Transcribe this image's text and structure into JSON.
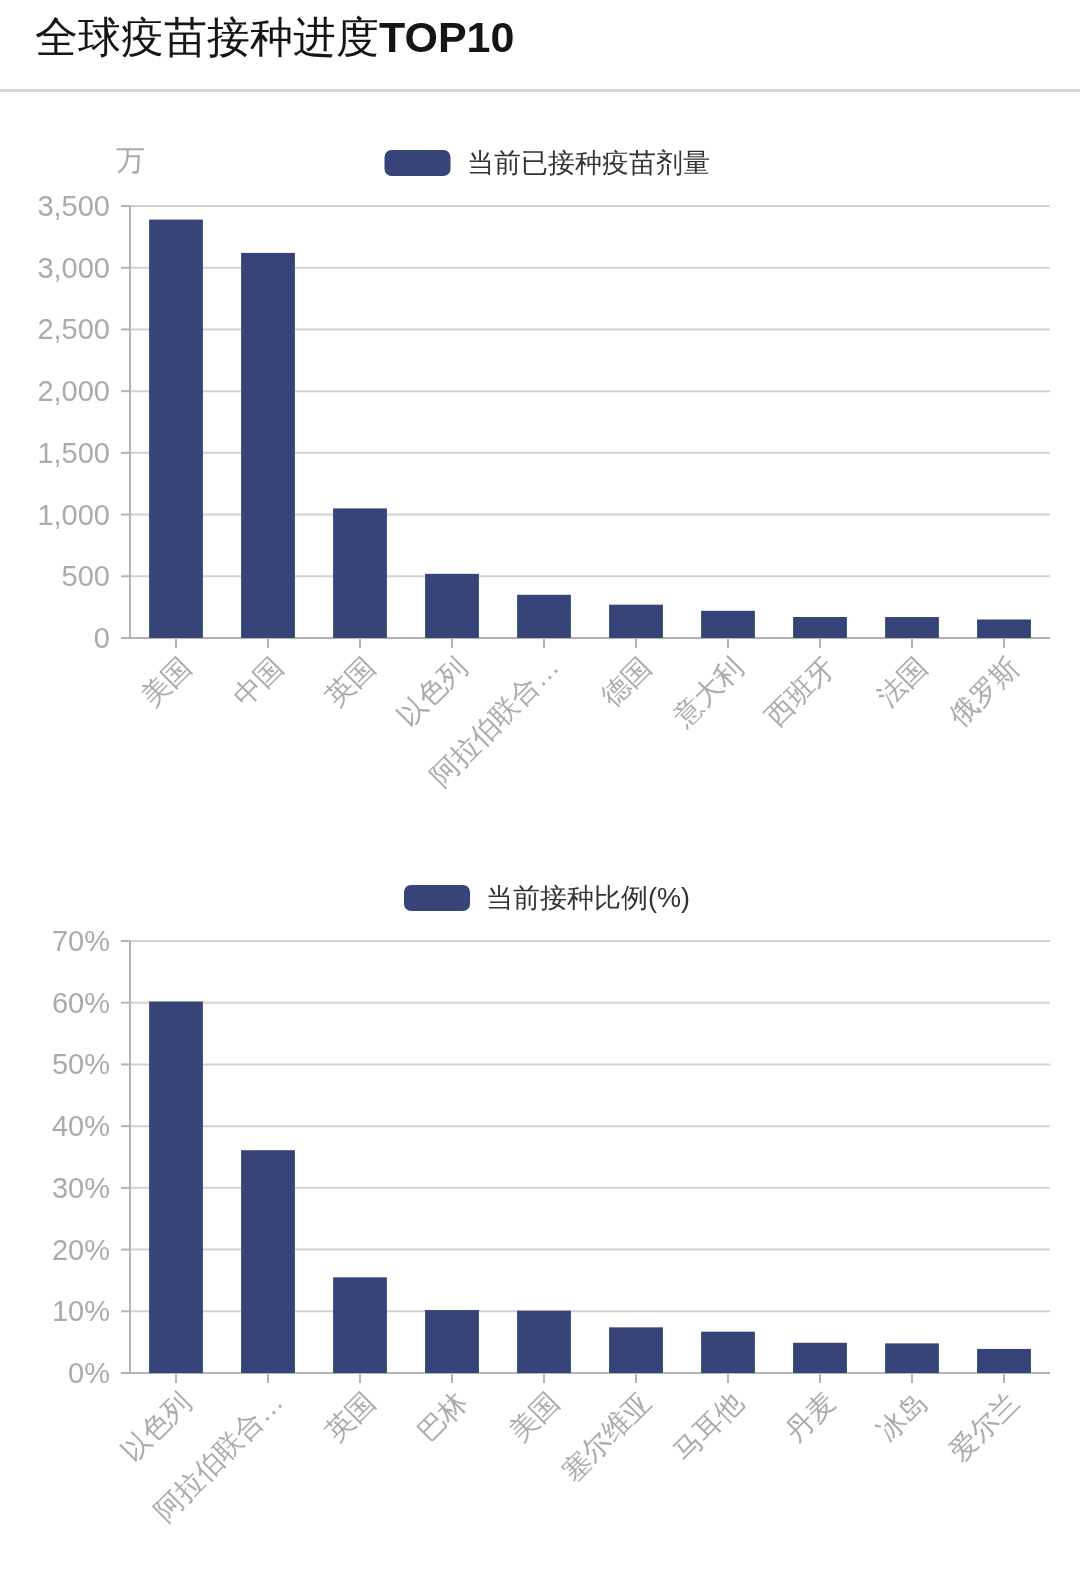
{
  "chart_data": [
    {
      "type": "bar",
      "title": "全球疫苗接种进度TOP10",
      "ylabel": "万",
      "categories": [
        "美国",
        "中国",
        "英国",
        "以色列",
        "阿拉伯联合…",
        "德国",
        "意大利",
        "西班牙",
        "法国",
        "俄罗斯"
      ],
      "series": [
        {
          "name": "当前已接种疫苗剂量",
          "color": "#374478",
          "values": [
            3390,
            3120,
            1050,
            520,
            350,
            270,
            220,
            170,
            170,
            150
          ]
        }
      ],
      "ylim": [
        0,
        3500
      ],
      "yticks": [
        0,
        500,
        {
          "value": 1000,
          "label": "1,000"
        },
        {
          "value": 1500,
          "label": "1,500"
        },
        {
          "value": 2000,
          "label": "2,000"
        },
        {
          "value": 2500,
          "label": "2,500"
        },
        {
          "value": 3000,
          "label": "3,000"
        },
        {
          "value": 3500,
          "label": "3,500"
        }
      ],
      "grid": "y",
      "legend": "top"
    },
    {
      "type": "bar",
      "categories": [
        "以色列",
        "阿拉伯联合…",
        "英国",
        "巴林",
        "美国",
        "塞尔维亚",
        "马耳他",
        "丹麦",
        "冰岛",
        "爱尔兰"
      ],
      "series": [
        {
          "name": "当前接种比例(%)",
          "color": "#374478",
          "values": [
            60.2,
            36.1,
            15.5,
            10.2,
            10.1,
            7.4,
            6.7,
            4.9,
            4.8,
            3.9
          ]
        }
      ],
      "ylim": [
        0,
        70
      ],
      "yticks": [
        {
          "value": 0,
          "label": "0%"
        },
        {
          "value": 10,
          "label": "10%"
        },
        {
          "value": 20,
          "label": "20%"
        },
        {
          "value": 30,
          "label": "30%"
        },
        {
          "value": 40,
          "label": "40%"
        },
        {
          "value": 50,
          "label": "50%"
        },
        {
          "value": 60,
          "label": "60%"
        },
        {
          "value": 70,
          "label": "70%"
        }
      ],
      "grid": "y",
      "legend": "top"
    }
  ]
}
